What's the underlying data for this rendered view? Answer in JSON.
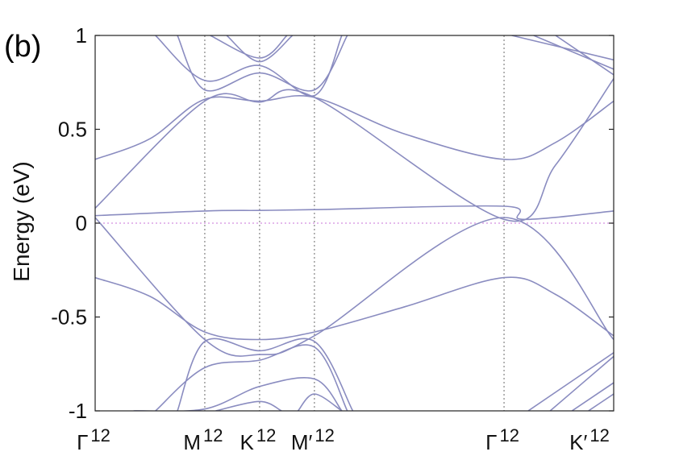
{
  "panel_label": "(b)",
  "chart_data": {
    "type": "line",
    "ylabel": "Energy (eV)",
    "xlabel": "",
    "ylim": [
      -1,
      1
    ],
    "yticks": [
      1,
      0.5,
      0,
      -0.5,
      -1
    ],
    "ytick_labels": [
      "1",
      "0.5",
      "0",
      "-0.5",
      "-1"
    ],
    "x_path": [
      {
        "label": "Γ",
        "sup": "12",
        "x": 0
      },
      {
        "label": "M",
        "sup": "12",
        "x": 1
      },
      {
        "label": "K",
        "sup": "12",
        "x": 1.5
      },
      {
        "label": "M′",
        "sup": "12",
        "x": 2
      },
      {
        "label": "Γ",
        "sup": "12",
        "x": 3.73
      },
      {
        "label": "K′",
        "sup": "12",
        "x": 4.73
      }
    ],
    "xlim": [
      0,
      4.73
    ],
    "line_color": "#8a8cc0",
    "vline_color": "#8c8c8c",
    "zero_line_color": "#d48fe0",
    "grid": false,
    "series": [
      {
        "values": [
          [
            0,
            0.04
          ],
          [
            1,
            0.065
          ],
          [
            1.5,
            0.068
          ],
          [
            2,
            0.072
          ],
          [
            3.73,
            0.09
          ],
          [
            3.9,
            0.02
          ],
          [
            4.73,
            0.065
          ]
        ]
      },
      {
        "values": [
          [
            0,
            0.08
          ],
          [
            1,
            0.65
          ],
          [
            1.5,
            0.645
          ],
          [
            2,
            0.67
          ],
          [
            3.73,
            0.02
          ],
          [
            4.2,
            0.31
          ],
          [
            4.73,
            0.77
          ]
        ]
      },
      {
        "values": [
          [
            0,
            0.34
          ],
          [
            0.5,
            0.45
          ],
          [
            1,
            0.66
          ],
          [
            1.5,
            0.65
          ],
          [
            2,
            0.67
          ],
          [
            2.8,
            0.48
          ],
          [
            3.73,
            0.34
          ],
          [
            4.2,
            0.43
          ],
          [
            4.73,
            0.65
          ]
        ]
      },
      {
        "values": [
          [
            0,
            0.03
          ],
          [
            1,
            -0.62
          ],
          [
            1.5,
            -0.7
          ],
          [
            2,
            -0.6
          ],
          [
            3.73,
            0.03
          ],
          [
            4.73,
            -0.62
          ]
        ]
      },
      {
        "values": [
          [
            0,
            -0.29
          ],
          [
            0.5,
            -0.39
          ],
          [
            1,
            -0.58
          ],
          [
            1.5,
            -0.62
          ],
          [
            2,
            -0.58
          ],
          [
            2.8,
            -0.45
          ],
          [
            3.73,
            -0.29
          ],
          [
            4.2,
            -0.38
          ],
          [
            4.73,
            -0.6
          ]
        ]
      },
      {
        "values": [
          [
            0.75,
            1.0
          ],
          [
            1,
            0.71
          ],
          [
            1.5,
            0.8
          ],
          [
            2,
            0.71
          ],
          [
            2.3,
            1.0
          ]
        ]
      },
      {
        "values": [
          [
            0.55,
            1.0
          ],
          [
            1,
            0.76
          ],
          [
            1.5,
            0.84
          ],
          [
            2,
            0.68
          ],
          [
            2.25,
            1.0
          ]
        ]
      },
      {
        "values": [
          [
            1.05,
            1.0
          ],
          [
            1.5,
            0.88
          ],
          [
            1.75,
            1.0
          ]
        ]
      },
      {
        "values": [
          [
            1.2,
            1.0
          ],
          [
            1.5,
            0.86
          ],
          [
            1.8,
            1.0
          ]
        ]
      },
      {
        "values": [
          [
            3.8,
            1.0
          ],
          [
            4.73,
            0.87
          ]
        ]
      },
      {
        "values": [
          [
            4.0,
            1.0
          ],
          [
            4.73,
            0.82
          ]
        ]
      },
      {
        "values": [
          [
            4.2,
            1.0
          ],
          [
            4.73,
            0.79
          ]
        ]
      },
      {
        "values": [
          [
            0.75,
            -1.0
          ],
          [
            1,
            -0.63
          ],
          [
            1.5,
            -0.68
          ],
          [
            2,
            -0.63
          ],
          [
            2.35,
            -1.0
          ]
        ]
      },
      {
        "values": [
          [
            0.55,
            -1.0
          ],
          [
            1,
            -0.77
          ],
          [
            1.5,
            -0.73
          ],
          [
            2,
            -0.66
          ],
          [
            2.3,
            -1.0
          ]
        ]
      },
      {
        "values": [
          [
            0.35,
            -1.0
          ],
          [
            1,
            -0.99
          ],
          [
            1.5,
            -0.87
          ],
          [
            2,
            -0.83
          ],
          [
            2.25,
            -1.0
          ]
        ]
      },
      {
        "values": [
          [
            1.1,
            -1.0
          ],
          [
            1.5,
            -0.95
          ],
          [
            1.7,
            -1.0
          ]
        ]
      },
      {
        "values": [
          [
            1.85,
            -1.0
          ],
          [
            2,
            -0.91
          ],
          [
            2.25,
            -1.0
          ]
        ]
      },
      {
        "values": [
          [
            3.95,
            -1.0
          ],
          [
            4.73,
            -0.69
          ]
        ]
      },
      {
        "values": [
          [
            4.15,
            -1.0
          ],
          [
            4.73,
            -0.71
          ]
        ]
      },
      {
        "values": [
          [
            4.35,
            -1.0
          ],
          [
            4.73,
            -0.85
          ]
        ]
      },
      {
        "values": [
          [
            4.5,
            -1.0
          ],
          [
            4.73,
            -0.91
          ]
        ]
      }
    ]
  }
}
